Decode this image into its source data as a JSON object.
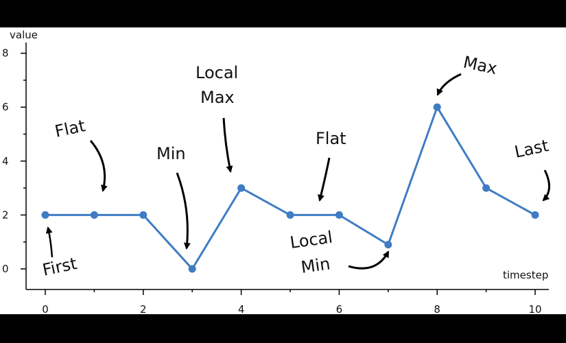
{
  "chart_data": {
    "type": "line",
    "xlabel": "timestep",
    "ylabel": "value",
    "xlim": [
      0,
      10
    ],
    "ylim": [
      0,
      8
    ],
    "x_ticks": [
      0,
      2,
      4,
      6,
      8,
      10
    ],
    "y_ticks": [
      0,
      2,
      4,
      6,
      8
    ],
    "series": [
      {
        "x": [
          0,
          1,
          2,
          3,
          4,
          5,
          6,
          7,
          8,
          9,
          10
        ],
        "values": [
          2,
          2,
          2,
          0,
          3,
          2,
          2,
          0.9,
          6,
          3,
          2
        ],
        "color": "#3f7cc4"
      }
    ],
    "annotations": {
      "flat_1": "Flat",
      "min": "Min",
      "local_max_1": "Local",
      "local_max_2": "Max",
      "flat_2": "Flat",
      "max": "Max",
      "last": "Last",
      "first": "First",
      "local_min_1": "Local",
      "local_min_2": "Min"
    }
  }
}
